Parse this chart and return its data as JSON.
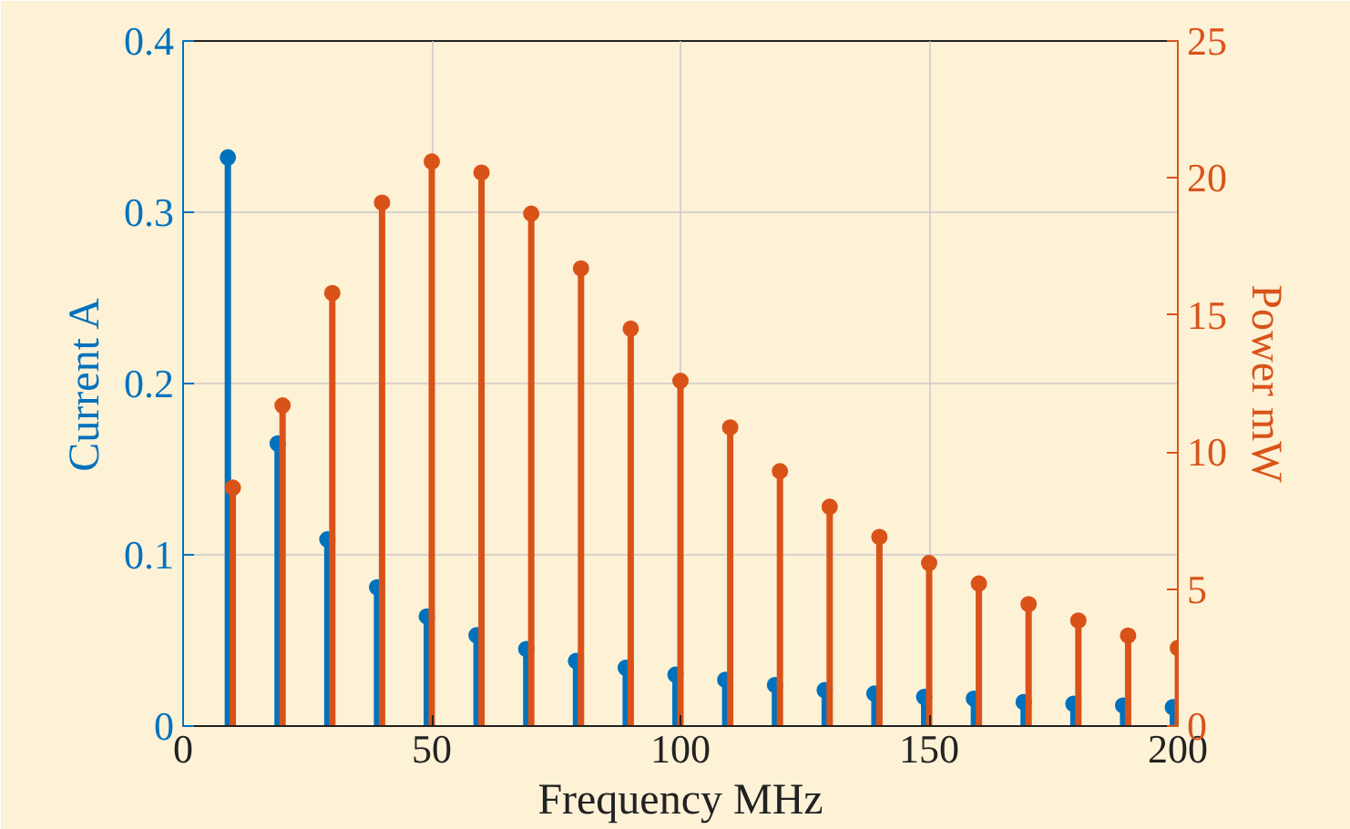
{
  "chart_data": {
    "type": "lollipop",
    "xlabel": "Frequency MHz",
    "ylabel": "Current A",
    "y2label": "Power mW",
    "xlim": [
      0,
      200
    ],
    "xticks": [
      0,
      50,
      100,
      150,
      200
    ],
    "ylim": [
      0,
      0.4
    ],
    "yticks": [
      0,
      0.1,
      0.2,
      0.3,
      0.4
    ],
    "y2lim": [
      0,
      25
    ],
    "y2ticks": [
      0,
      5,
      10,
      15,
      20,
      25
    ],
    "grid": true,
    "marker": "circle",
    "series": [
      {
        "color": "#0072bd",
        "x": [
          9,
          19,
          29,
          39,
          49,
          59,
          69,
          79,
          89,
          99,
          109,
          119,
          129,
          139,
          149,
          159,
          169,
          179,
          189,
          199
        ],
        "values": [
          0.332,
          0.165,
          0.109,
          0.081,
          0.064,
          0.053,
          0.045,
          0.038,
          0.034,
          0.03,
          0.027,
          0.024,
          0.021,
          0.019,
          0.017,
          0.016,
          0.014,
          0.013,
          0.012,
          0.011
        ]
      },
      {
        "color": "#d95319",
        "axis": "y2",
        "x": [
          10,
          20,
          30,
          40,
          50,
          60,
          70,
          80,
          90,
          100,
          110,
          120,
          130,
          140,
          150,
          160,
          170,
          180,
          190,
          200
        ],
        "values": [
          8.7,
          11.7,
          15.8,
          19.1,
          20.6,
          20.2,
          18.7,
          16.7,
          14.5,
          12.6,
          10.9,
          9.3,
          8.0,
          6.9,
          5.95,
          5.2,
          4.45,
          3.85,
          3.3,
          2.85
        ]
      }
    ]
  }
}
